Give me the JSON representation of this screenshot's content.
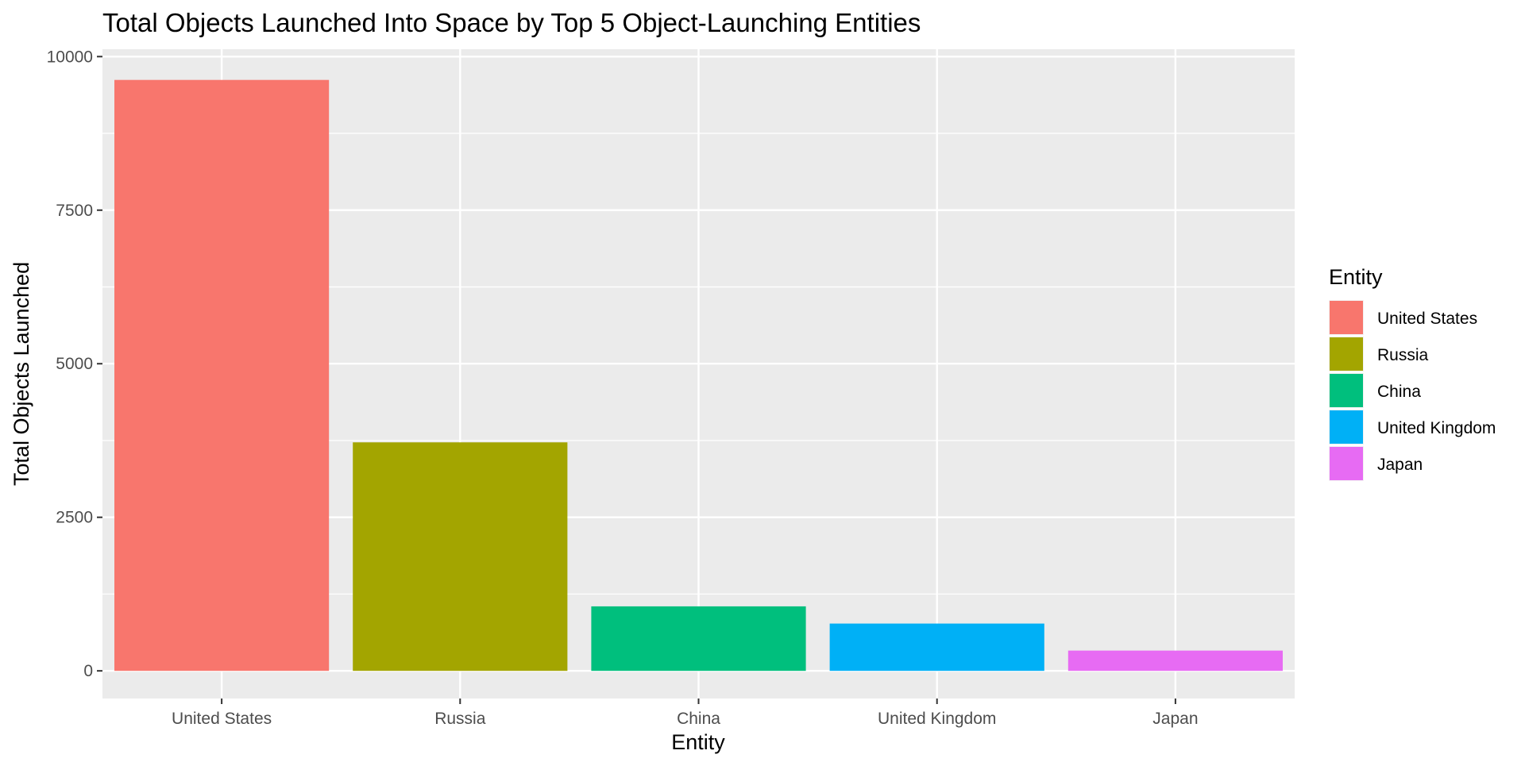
{
  "chart_data": {
    "type": "bar",
    "title": "Total Objects Launched Into Space by Top 5 Object-Launching Entities",
    "xlabel": "Entity",
    "ylabel": "Total Objects Launched",
    "categories": [
      "United States",
      "Russia",
      "China",
      "United Kingdom",
      "Japan"
    ],
    "values": [
      9620,
      3720,
      1050,
      770,
      330
    ],
    "colors": [
      "#F8766D",
      "#A3A500",
      "#00BF7D",
      "#00B0F6",
      "#E76BF3"
    ],
    "ylim": [
      -450,
      10120
    ],
    "yticks": [
      0,
      2500,
      5000,
      7500,
      10000
    ],
    "ytick_labels": [
      "0",
      "2500",
      "5000",
      "7500",
      "10000"
    ],
    "grid": true,
    "panel_background": "#EBEBEB",
    "grid_color": "#FFFFFF",
    "legend": {
      "title": "Entity",
      "position": "right",
      "entries": [
        "United States",
        "Russia",
        "China",
        "United Kingdom",
        "Japan"
      ]
    }
  }
}
